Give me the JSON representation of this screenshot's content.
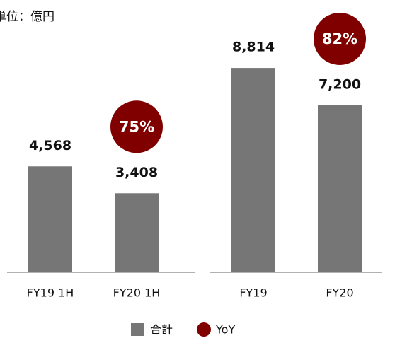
{
  "unit": "単位：億円",
  "legend": [
    {
      "name": "合計",
      "color": "#767676"
    },
    {
      "name": "YoY",
      "color": "#800000"
    }
  ],
  "chart_data": [
    {
      "type": "bar",
      "categories": [
        "FY19 1H",
        "FY20 1H"
      ],
      "series": [
        {
          "name": "合計",
          "color": "#767676",
          "values": [
            4568,
            3408
          ],
          "value_labels": [
            "4,568",
            "3,408"
          ]
        }
      ],
      "yoy": {
        "value": 75,
        "label": "75%",
        "color": "#800000"
      },
      "ylim": [
        0,
        9000
      ]
    },
    {
      "type": "bar",
      "categories": [
        "FY19",
        "FY20"
      ],
      "series": [
        {
          "name": "合計",
          "color": "#767676",
          "values": [
            8814,
            7200
          ],
          "value_labels": [
            "8,814",
            "7,200"
          ]
        }
      ],
      "yoy": {
        "value": 82,
        "label": "82%",
        "color": "#800000"
      },
      "ylim": [
        0,
        9000
      ]
    }
  ]
}
